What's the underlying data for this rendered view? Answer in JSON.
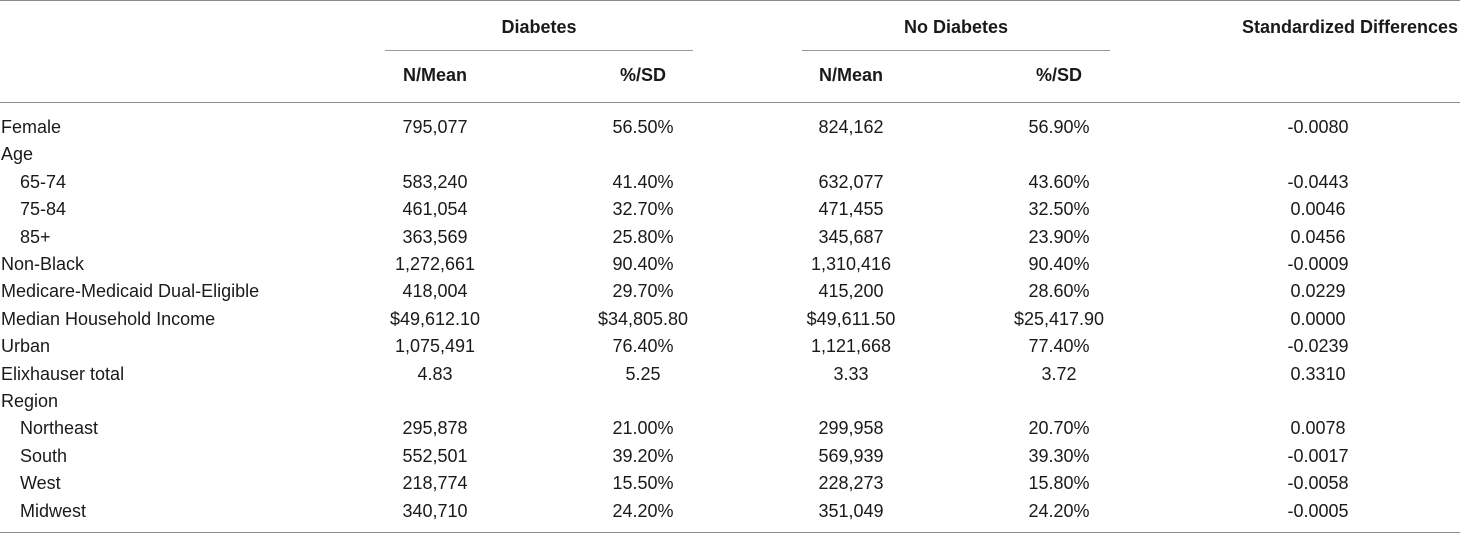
{
  "header": {
    "groups": [
      {
        "label": "Diabetes"
      },
      {
        "label": "No Diabetes"
      },
      {
        "label": "Standardized Differences"
      }
    ],
    "subheaders": [
      "N/Mean",
      "%/SD",
      "N/Mean",
      "%/SD"
    ]
  },
  "rows": [
    {
      "label": "Female",
      "indent": false,
      "values": [
        "795,077",
        "56.50%",
        "824,162",
        "56.90%",
        "-0.0080"
      ]
    },
    {
      "label": "Age",
      "indent": false,
      "values": [
        "",
        "",
        "",
        "",
        ""
      ]
    },
    {
      "label": "65-74",
      "indent": true,
      "values": [
        "583,240",
        "41.40%",
        "632,077",
        "43.60%",
        "-0.0443"
      ]
    },
    {
      "label": "75-84",
      "indent": true,
      "values": [
        "461,054",
        "32.70%",
        "471,455",
        "32.50%",
        "0.0046"
      ]
    },
    {
      "label": "85+",
      "indent": true,
      "values": [
        "363,569",
        "25.80%",
        "345,687",
        "23.90%",
        "0.0456"
      ]
    },
    {
      "label": "Non-Black",
      "indent": false,
      "values": [
        "1,272,661",
        "90.40%",
        "1,310,416",
        "90.40%",
        "-0.0009"
      ]
    },
    {
      "label": "Medicare-Medicaid Dual-Eligible",
      "indent": false,
      "values": [
        "418,004",
        "29.70%",
        "415,200",
        "28.60%",
        "0.0229"
      ]
    },
    {
      "label": "Median Household Income",
      "indent": false,
      "values": [
        "$49,612.10",
        "$34,805.80",
        "$49,611.50",
        "$25,417.90",
        "0.0000"
      ]
    },
    {
      "label": "Urban",
      "indent": false,
      "values": [
        "1,075,491",
        "76.40%",
        "1,121,668",
        "77.40%",
        "-0.0239"
      ]
    },
    {
      "label": "Elixhauser total",
      "indent": false,
      "values": [
        "4.83",
        "5.25",
        "3.33",
        "3.72",
        "0.3310"
      ]
    },
    {
      "label": "Region",
      "indent": false,
      "values": [
        "",
        "",
        "",
        "",
        ""
      ]
    },
    {
      "label": "Northeast",
      "indent": true,
      "values": [
        "295,878",
        "21.00%",
        "299,958",
        "20.70%",
        "0.0078"
      ]
    },
    {
      "label": "South",
      "indent": true,
      "values": [
        "552,501",
        "39.20%",
        "569,939",
        "39.30%",
        "-0.0017"
      ]
    },
    {
      "label": "West",
      "indent": true,
      "values": [
        "218,774",
        "15.50%",
        "228,273",
        "15.80%",
        "-0.0058"
      ]
    },
    {
      "label": "Midwest",
      "indent": true,
      "values": [
        "340,710",
        "24.20%",
        "351,049",
        "24.20%",
        "-0.0005"
      ]
    }
  ]
}
